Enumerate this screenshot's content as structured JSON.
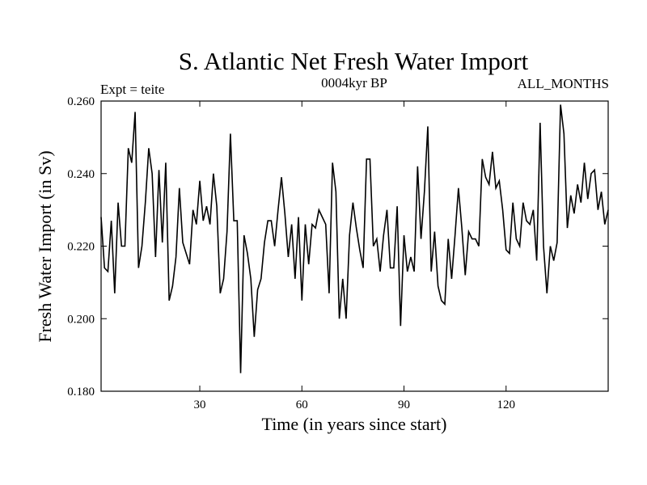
{
  "chart_data": {
    "type": "line",
    "title": "S. Atlantic Net Fresh Water Import",
    "subtitle_left": "Expt = teite",
    "subtitle_center": "0004kyr BP",
    "subtitle_right": "ALL_MONTHS",
    "xlabel": "Time (in years since start)",
    "ylabel": "Fresh Water Import (in Sv)",
    "xlim": [
      1,
      150
    ],
    "ylim": [
      0.18,
      0.26
    ],
    "x_ticks": [
      30,
      60,
      90,
      120
    ],
    "x_tick_labels": [
      "30",
      "60",
      "90",
      "120"
    ],
    "y_ticks": [
      0.18,
      0.2,
      0.22,
      0.24,
      0.26
    ],
    "y_tick_labels": [
      "0.180",
      "0.200",
      "0.220",
      "0.240",
      "0.260"
    ],
    "grid": false,
    "series": [
      {
        "name": "S. Atlantic Net Fresh Water Import",
        "x_start": 1,
        "x_step": 1,
        "values": [
          0.228,
          0.214,
          0.213,
          0.227,
          0.207,
          0.232,
          0.22,
          0.22,
          0.247,
          0.243,
          0.257,
          0.214,
          0.22,
          0.232,
          0.247,
          0.24,
          0.217,
          0.241,
          0.221,
          0.243,
          0.205,
          0.209,
          0.217,
          0.236,
          0.221,
          0.218,
          0.215,
          0.23,
          0.226,
          0.238,
          0.227,
          0.231,
          0.226,
          0.24,
          0.231,
          0.207,
          0.211,
          0.224,
          0.251,
          0.227,
          0.227,
          0.185,
          0.223,
          0.218,
          0.211,
          0.195,
          0.208,
          0.211,
          0.221,
          0.227,
          0.227,
          0.22,
          0.23,
          0.239,
          0.229,
          0.217,
          0.226,
          0.211,
          0.228,
          0.205,
          0.226,
          0.215,
          0.226,
          0.225,
          0.23,
          0.228,
          0.226,
          0.207,
          0.243,
          0.235,
          0.2,
          0.211,
          0.2,
          0.223,
          0.232,
          0.225,
          0.219,
          0.214,
          0.244,
          0.244,
          0.22,
          0.222,
          0.213,
          0.223,
          0.23,
          0.214,
          0.214,
          0.231,
          0.198,
          0.223,
          0.213,
          0.217,
          0.213,
          0.242,
          0.222,
          0.235,
          0.253,
          0.213,
          0.224,
          0.209,
          0.205,
          0.204,
          0.222,
          0.211,
          0.223,
          0.236,
          0.225,
          0.212,
          0.224,
          0.222,
          0.222,
          0.22,
          0.244,
          0.239,
          0.237,
          0.246,
          0.236,
          0.238,
          0.23,
          0.219,
          0.218,
          0.232,
          0.222,
          0.22,
          0.232,
          0.227,
          0.226,
          0.23,
          0.216,
          0.254,
          0.22,
          0.207,
          0.22,
          0.216,
          0.221,
          0.259,
          0.251,
          0.225,
          0.234,
          0.229,
          0.237,
          0.232,
          0.243,
          0.233,
          0.24,
          0.241,
          0.23,
          0.235,
          0.226,
          0.23
        ]
      }
    ]
  }
}
